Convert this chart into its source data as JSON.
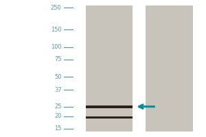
{
  "fig_width": 3.0,
  "fig_height": 2.0,
  "dpi": 100,
  "outer_bg": "#ffffff",
  "lane_bg": "#c8c4bc",
  "blot_bg": "#f0eeec",
  "band_color": "#2a2018",
  "mw_labels": [
    "250",
    "150",
    "100",
    "75",
    "50",
    "37",
    "25",
    "20",
    "15"
  ],
  "mw_values": [
    250,
    150,
    100,
    75,
    50,
    37,
    25,
    20,
    15
  ],
  "label_color": "#5b9baa",
  "lane_label_color": "#5b9baa",
  "arrow_color": "#00909a",
  "band1_mw": 25,
  "band2_mw": 19.5,
  "log_min": 1.146,
  "log_max": 2.42,
  "label_fontsize": 6.0,
  "lane_label_fontsize": 7.0,
  "tick_color": "#5b9baa",
  "tick_lw": 0.9
}
